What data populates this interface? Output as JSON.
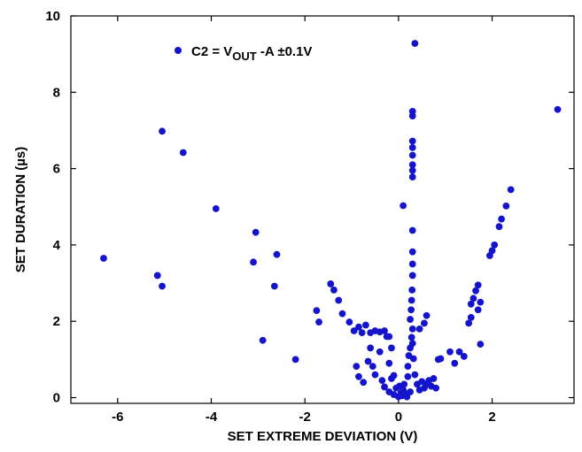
{
  "chart_data": {
    "type": "scatter",
    "xlabel": "SET EXTREME DEVIATION (V)",
    "ylabel": "SET DURATION (µs)",
    "xlim": [
      -7.0,
      3.75
    ],
    "ylim": [
      -0.15,
      10.0
    ],
    "x_ticks": [
      -6,
      -4,
      -2,
      0,
      2
    ],
    "y_ticks": [
      0,
      2,
      4,
      6,
      8,
      10
    ],
    "legend_position": "top-left",
    "colors": {
      "series": "#1414cc",
      "axis": "#000000",
      "background": "#ffffff"
    },
    "series": [
      {
        "name_parts": {
          "base": "C2 = V",
          "subscript": "OUT",
          "rest": " -A ±0.1V"
        },
        "points": [
          [
            -6.3,
            3.65
          ],
          [
            -5.15,
            3.2
          ],
          [
            -5.05,
            2.92
          ],
          [
            -5.05,
            6.98
          ],
          [
            -4.6,
            6.42
          ],
          [
            -3.9,
            4.95
          ],
          [
            -3.05,
            4.33
          ],
          [
            -3.1,
            3.55
          ],
          [
            -2.9,
            1.5
          ],
          [
            -2.65,
            2.92
          ],
          [
            -2.6,
            3.75
          ],
          [
            -2.2,
            1.0
          ],
          [
            -1.75,
            2.28
          ],
          [
            -1.7,
            1.98
          ],
          [
            -1.45,
            2.98
          ],
          [
            -1.38,
            2.82
          ],
          [
            -1.28,
            2.55
          ],
          [
            -1.2,
            2.2
          ],
          [
            -1.05,
            1.98
          ],
          [
            -0.95,
            1.75
          ],
          [
            -0.85,
            1.85
          ],
          [
            -0.78,
            1.7
          ],
          [
            -0.7,
            1.9
          ],
          [
            -0.6,
            1.7
          ],
          [
            -0.5,
            1.75
          ],
          [
            -0.4,
            1.72
          ],
          [
            -0.3,
            1.75
          ],
          [
            -0.2,
            1.6
          ],
          [
            -0.15,
            1.3
          ],
          [
            -0.25,
            1.6
          ],
          [
            -0.1,
            0.58
          ],
          [
            0.1,
            5.03
          ],
          [
            -0.9,
            0.82
          ],
          [
            -0.85,
            0.55
          ],
          [
            -0.75,
            0.4
          ],
          [
            -0.65,
            0.95
          ],
          [
            -0.6,
            1.3
          ],
          [
            -0.55,
            0.82
          ],
          [
            -0.5,
            0.6
          ],
          [
            -0.4,
            1.2
          ],
          [
            -0.35,
            0.45
          ],
          [
            -0.3,
            0.28
          ],
          [
            -0.2,
            0.9
          ],
          [
            -0.2,
            0.15
          ],
          [
            -0.15,
            0.5
          ],
          [
            -0.1,
            0.08
          ],
          [
            -0.05,
            0.25
          ],
          [
            0.0,
            0.02
          ],
          [
            0.02,
            0.3
          ],
          [
            0.05,
            0.12
          ],
          [
            0.08,
            0.05
          ],
          [
            0.1,
            0.2
          ],
          [
            0.12,
            0.35
          ],
          [
            0.15,
            0.1
          ],
          [
            0.18,
            0.02
          ],
          [
            0.2,
            0.55
          ],
          [
            0.2,
            0.82
          ],
          [
            0.22,
            1.1
          ],
          [
            0.25,
            1.3
          ],
          [
            0.25,
            0.15
          ],
          [
            0.28,
            1.58
          ],
          [
            0.3,
            1.42
          ],
          [
            0.3,
            1.8
          ],
          [
            0.32,
            1.02
          ],
          [
            0.25,
            2.05
          ],
          [
            0.27,
            2.3
          ],
          [
            0.28,
            2.55
          ],
          [
            0.29,
            2.82
          ],
          [
            0.3,
            3.2
          ],
          [
            0.3,
            3.5
          ],
          [
            0.3,
            3.82
          ],
          [
            0.3,
            4.38
          ],
          [
            0.3,
            5.78
          ],
          [
            0.3,
            5.95
          ],
          [
            0.3,
            6.1
          ],
          [
            0.3,
            6.35
          ],
          [
            0.3,
            6.55
          ],
          [
            0.3,
            6.72
          ],
          [
            0.3,
            7.38
          ],
          [
            0.3,
            7.5
          ],
          [
            0.35,
            9.28
          ],
          [
            0.45,
            1.8
          ],
          [
            0.55,
            1.95
          ],
          [
            0.6,
            2.15
          ],
          [
            0.35,
            0.6
          ],
          [
            0.4,
            0.35
          ],
          [
            0.45,
            0.2
          ],
          [
            0.5,
            0.42
          ],
          [
            0.55,
            0.25
          ],
          [
            0.6,
            0.35
          ],
          [
            0.65,
            0.45
          ],
          [
            0.7,
            0.3
          ],
          [
            0.75,
            0.5
          ],
          [
            0.8,
            0.25
          ],
          [
            0.85,
            1.0
          ],
          [
            0.9,
            1.02
          ],
          [
            1.1,
            1.2
          ],
          [
            1.2,
            0.9
          ],
          [
            1.3,
            1.2
          ],
          [
            1.4,
            1.08
          ],
          [
            1.5,
            1.95
          ],
          [
            1.55,
            2.1
          ],
          [
            1.55,
            2.45
          ],
          [
            1.6,
            2.6
          ],
          [
            1.65,
            2.8
          ],
          [
            1.7,
            2.95
          ],
          [
            1.7,
            2.3
          ],
          [
            1.75,
            2.5
          ],
          [
            1.75,
            1.4
          ],
          [
            1.95,
            3.72
          ],
          [
            2.0,
            3.85
          ],
          [
            2.05,
            4.0
          ],
          [
            2.15,
            4.48
          ],
          [
            2.2,
            4.68
          ],
          [
            2.3,
            5.02
          ],
          [
            2.4,
            5.45
          ],
          [
            3.4,
            7.55
          ]
        ]
      }
    ]
  }
}
